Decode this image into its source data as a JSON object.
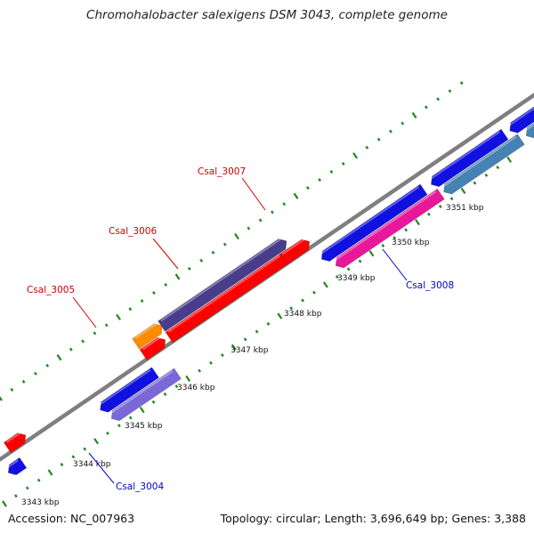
{
  "title": "Chromohalobacter salexigens DSM 3043, complete genome",
  "footer": {
    "accession": "Accession: NC_007963",
    "summary": "Topology: circular; Length: 3,696,649 bp; Genes: 3,388"
  },
  "colors": {
    "backbone": "#8a8a8a",
    "tick": "#1f8a1f",
    "label_forward": "#cc0000",
    "label_reverse": "#0000cc"
  },
  "kbp_labels": [
    "3343 kbp",
    "3344 kbp",
    "3345 kbp",
    "3346 kbp",
    "3347 kbp",
    "3348 kbp",
    "3349 kbp",
    "3350 kbp",
    "3351 kbp"
  ],
  "gene_labels": [
    {
      "text": "Csal_3004",
      "strand": "reverse"
    },
    {
      "text": "Csal_3005",
      "strand": "forward"
    },
    {
      "text": "Csal_3006",
      "strand": "forward"
    },
    {
      "text": "Csal_3007",
      "strand": "forward"
    },
    {
      "text": "Csal_3008",
      "strand": "reverse"
    }
  ],
  "features": [
    {
      "id": "gene-blue-a",
      "track": 1,
      "color": "#1010e0"
    },
    {
      "id": "gene-blue-b",
      "track": 1,
      "color": "#1010e0"
    },
    {
      "id": "gene-blue-c",
      "track": 1,
      "color": "#1010e0"
    },
    {
      "id": "gene-blue-d",
      "track": 1,
      "color": "#1010e0"
    },
    {
      "id": "gene-blue-e",
      "track": 1,
      "color": "#1010e0"
    },
    {
      "id": "cds-lavender",
      "track": 2,
      "color": "#7b68d8"
    },
    {
      "id": "cds-magenta",
      "track": 2,
      "color": "#e8189a"
    },
    {
      "id": "cds-steelblue",
      "track": 2,
      "color": "#4682b4"
    },
    {
      "id": "cds-steelblue-end",
      "track": 2,
      "color": "#4682b4"
    },
    {
      "id": "gene-red-a",
      "track": -1,
      "color": "#ff0000"
    },
    {
      "id": "gene-red-b",
      "track": -1,
      "color": "#ff0000"
    },
    {
      "id": "gene-red-c",
      "track": -1,
      "color": "#ff0000"
    },
    {
      "id": "gene-red-d",
      "track": -1,
      "color": "#ff0000"
    },
    {
      "id": "cds-orange",
      "track": -2,
      "color": "#ff8c00"
    },
    {
      "id": "cds-darkslate",
      "track": -2,
      "color": "#483d8b"
    }
  ]
}
